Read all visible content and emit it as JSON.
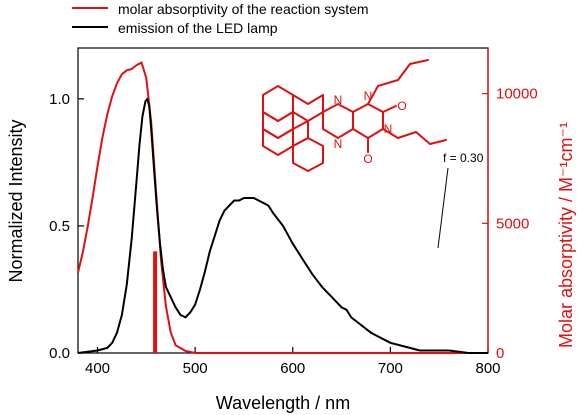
{
  "chart_data": {
    "type": "line",
    "xlabel": "Wavelength / nm",
    "ylabel": "Normalized Intensity",
    "y2label": "Molar absorptivity / M⁻¹cm⁻¹",
    "xlim": [
      380,
      800
    ],
    "ylim": [
      0,
      1.2
    ],
    "y2lim": [
      0,
      11760
    ],
    "xticks": [
      400,
      500,
      600,
      700,
      800
    ],
    "yticks": [
      0.0,
      0.5,
      1.0
    ],
    "ytick_labels": [
      "0.0",
      "0.5",
      "1.0"
    ],
    "y2ticks": [
      0,
      5000,
      10000
    ],
    "legend_position": "top-left",
    "grid": false,
    "colors": {
      "absorption": "#e01010",
      "emission": "#000000"
    },
    "series": [
      {
        "name": "molar absorptivity of the reaction system",
        "axis": "right",
        "color": "#e01010",
        "x": [
          380,
          385,
          390,
          395,
          400,
          405,
          410,
          415,
          420,
          425,
          430,
          435,
          440,
          445,
          450,
          455,
          460,
          465,
          470,
          475,
          480,
          490,
          500,
          520,
          560,
          600,
          700,
          800
        ],
        "y": [
          3100,
          3900,
          4900,
          6000,
          7200,
          8300,
          9200,
          9900,
          10400,
          10750,
          10900,
          10950,
          11100,
          11200,
          10600,
          8900,
          6200,
          3600,
          1800,
          800,
          300,
          80,
          0,
          0,
          0,
          0,
          0,
          0
        ]
      },
      {
        "name": "emission of the LED lamp",
        "axis": "left",
        "color": "#000000",
        "x": [
          380,
          400,
          410,
          415,
          420,
          425,
          430,
          435,
          440,
          443,
          446,
          449,
          451,
          453,
          455,
          458,
          461,
          464,
          467,
          470,
          475,
          480,
          485,
          490,
          495,
          500,
          505,
          510,
          515,
          520,
          525,
          530,
          535,
          540,
          545,
          550,
          555,
          560,
          565,
          570,
          575,
          580,
          590,
          600,
          610,
          620,
          630,
          640,
          650,
          655,
          660,
          670,
          680,
          690,
          700,
          710,
          720,
          730,
          740,
          760,
          780,
          800
        ],
        "y": [
          0,
          0.01,
          0.02,
          0.04,
          0.08,
          0.15,
          0.27,
          0.45,
          0.68,
          0.82,
          0.93,
          0.99,
          1.0,
          0.97,
          0.88,
          0.72,
          0.56,
          0.43,
          0.33,
          0.26,
          0.22,
          0.18,
          0.15,
          0.14,
          0.16,
          0.19,
          0.25,
          0.32,
          0.4,
          0.46,
          0.52,
          0.56,
          0.58,
          0.6,
          0.6,
          0.61,
          0.61,
          0.61,
          0.6,
          0.59,
          0.58,
          0.55,
          0.5,
          0.43,
          0.37,
          0.31,
          0.26,
          0.22,
          0.18,
          0.17,
          0.14,
          0.11,
          0.08,
          0.06,
          0.04,
          0.03,
          0.02,
          0.01,
          0.01,
          0.01,
          0.0,
          0.0
        ]
      }
    ],
    "annotation": {
      "text": "f = 0.30",
      "x": 459,
      "bar_height": 0.4,
      "color": "#e01010"
    }
  },
  "structure": {
    "labels": {
      "n_top": "N",
      "n_bottom": "N",
      "n_right_top": "N",
      "n_right_bottom": "N",
      "o_top": "O",
      "o_bottom": "O"
    }
  }
}
